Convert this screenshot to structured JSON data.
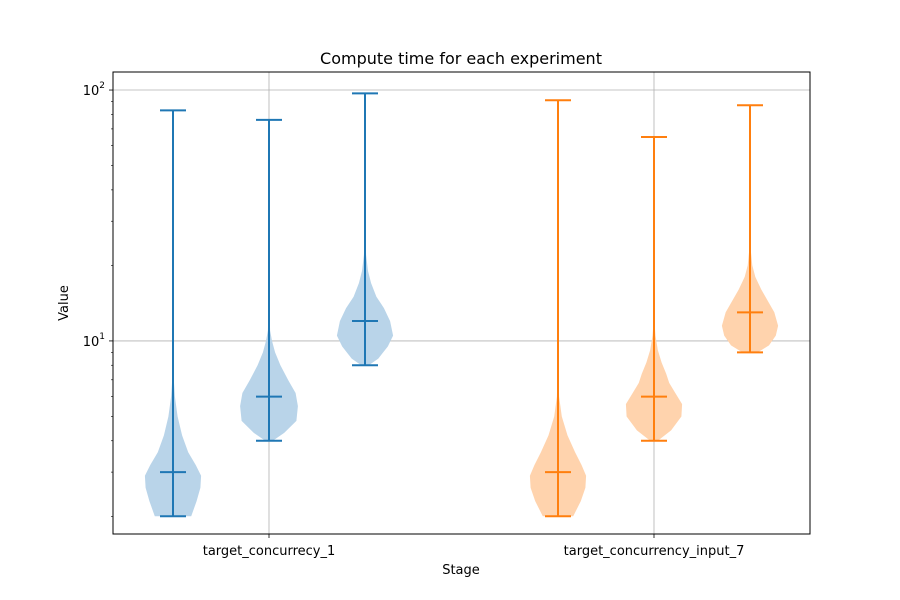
{
  "chart_data": {
    "type": "violin",
    "title": "Compute time for each experiment",
    "xlabel": "Stage",
    "ylabel": "Value",
    "yscale": "log",
    "ylim": [
      1.7,
      118
    ],
    "grid": true,
    "y_tick_base": "10",
    "y_ticks": [
      {
        "value": 10,
        "exp": "1"
      },
      {
        "value": 100,
        "exp": "2"
      }
    ],
    "categories": [
      "target_concurrecy_1",
      "target_concurrency_input_7"
    ],
    "colors": {
      "group1_line": "#1f77b4",
      "group1_fill": "#b9d4e9",
      "group2_line": "#ff7f0e",
      "group2_fill": "#ffd3ad"
    },
    "series": [
      {
        "group": 0,
        "offset": -0.5,
        "min": 2.0,
        "median": 3.0,
        "max": 83,
        "profile": [
          [
            2.0,
            0.48
          ],
          [
            2.3,
            0.62
          ],
          [
            2.6,
            0.72
          ],
          [
            2.9,
            0.74
          ],
          [
            3.2,
            0.6
          ],
          [
            3.6,
            0.4
          ],
          [
            4.2,
            0.24
          ],
          [
            5.0,
            0.12
          ],
          [
            6.0,
            0.05
          ],
          [
            7.0,
            0.02
          ],
          [
            10,
            0.008
          ],
          [
            20,
            0.005
          ],
          [
            40,
            0.004
          ],
          [
            83,
            0.003
          ]
        ]
      },
      {
        "group": 0,
        "offset": 0,
        "min": 4.0,
        "median": 6.0,
        "max": 76,
        "profile": [
          [
            4.0,
            0.1
          ],
          [
            4.3,
            0.4
          ],
          [
            4.8,
            0.72
          ],
          [
            5.5,
            0.76
          ],
          [
            6.2,
            0.7
          ],
          [
            7.0,
            0.5
          ],
          [
            8.0,
            0.3
          ],
          [
            9.0,
            0.16
          ],
          [
            10.0,
            0.08
          ],
          [
            11.0,
            0.03
          ],
          [
            14,
            0.01
          ],
          [
            25,
            0.005
          ],
          [
            76,
            0.003
          ]
        ]
      },
      {
        "group": 0,
        "offset": 0.5,
        "min": 8.0,
        "median": 12.0,
        "max": 97,
        "profile": [
          [
            8.0,
            0.1
          ],
          [
            8.5,
            0.35
          ],
          [
            9.5,
            0.6
          ],
          [
            10.5,
            0.74
          ],
          [
            12.0,
            0.66
          ],
          [
            13.5,
            0.5
          ],
          [
            15.0,
            0.3
          ],
          [
            17.0,
            0.16
          ],
          [
            19.0,
            0.08
          ],
          [
            22.0,
            0.03
          ],
          [
            26,
            0.012
          ],
          [
            35,
            0.006
          ],
          [
            97,
            0.003
          ]
        ]
      },
      {
        "group": 1,
        "offset": -0.5,
        "min": 2.0,
        "median": 3.0,
        "max": 91,
        "profile": [
          [
            2.0,
            0.4
          ],
          [
            2.3,
            0.6
          ],
          [
            2.6,
            0.72
          ],
          [
            2.9,
            0.74
          ],
          [
            3.2,
            0.62
          ],
          [
            3.6,
            0.45
          ],
          [
            4.2,
            0.25
          ],
          [
            5.0,
            0.1
          ],
          [
            6.0,
            0.03
          ],
          [
            8.0,
            0.01
          ],
          [
            15,
            0.005
          ],
          [
            40,
            0.004
          ],
          [
            91,
            0.003
          ]
        ]
      },
      {
        "group": 1,
        "offset": 0,
        "min": 4.0,
        "median": 6.0,
        "max": 65,
        "profile": [
          [
            4.0,
            0.1
          ],
          [
            4.4,
            0.45
          ],
          [
            5.0,
            0.72
          ],
          [
            5.6,
            0.74
          ],
          [
            6.2,
            0.56
          ],
          [
            6.8,
            0.4
          ],
          [
            7.4,
            0.32
          ],
          [
            8.2,
            0.2
          ],
          [
            9.2,
            0.1
          ],
          [
            10.5,
            0.04
          ],
          [
            12,
            0.01
          ],
          [
            20,
            0.005
          ],
          [
            65,
            0.003
          ]
        ]
      },
      {
        "group": 1,
        "offset": 0.5,
        "min": 9.0,
        "median": 13.0,
        "max": 87,
        "profile": [
          [
            9.0,
            0.2
          ],
          [
            9.6,
            0.5
          ],
          [
            10.5,
            0.68
          ],
          [
            11.5,
            0.74
          ],
          [
            13.0,
            0.64
          ],
          [
            14.5,
            0.46
          ],
          [
            16.0,
            0.3
          ],
          [
            18.0,
            0.14
          ],
          [
            20.0,
            0.06
          ],
          [
            23.0,
            0.02
          ],
          [
            30,
            0.008
          ],
          [
            87,
            0.003
          ]
        ]
      }
    ]
  }
}
